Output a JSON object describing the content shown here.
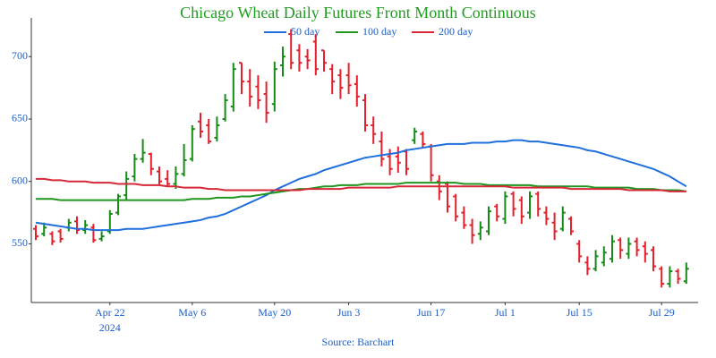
{
  "chart_data": {
    "type": "ohlc",
    "title": "Chicago Wheat Daily Futures Front Month Continuous",
    "source": "Source: Barchart",
    "year_label": "2024",
    "categories": [
      null,
      null,
      null,
      null,
      null,
      null,
      null,
      null,
      null,
      "Apr 22",
      null,
      null,
      null,
      null,
      null,
      null,
      null,
      null,
      null,
      "May 6",
      null,
      null,
      null,
      null,
      null,
      null,
      null,
      null,
      null,
      "May 20",
      null,
      null,
      null,
      null,
      null,
      null,
      null,
      null,
      "Jun 3",
      null,
      null,
      null,
      null,
      null,
      null,
      null,
      null,
      null,
      "Jun 17",
      null,
      null,
      null,
      null,
      null,
      null,
      null,
      null,
      "Jul 1",
      null,
      null,
      null,
      null,
      null,
      null,
      null,
      null,
      "Jul 15",
      null,
      null,
      null,
      null,
      null,
      null,
      null,
      null,
      null,
      "Jul 29",
      null,
      null,
      null
    ],
    "ohlc": {
      "open": [
        562,
        558,
        558,
        560,
        563,
        568,
        561,
        563,
        554,
        560,
        575,
        589,
        604,
        618,
        622,
        608,
        602,
        598,
        606,
        618,
        648,
        645,
        635,
        650,
        660,
        695,
        680,
        676,
        670,
        662,
        693,
        718,
        705,
        700,
        712,
        705,
        690,
        685,
        685,
        678,
        665,
        645,
        632,
        620,
        620,
        624,
        633,
        638,
        628,
        600,
        598,
        588,
        575,
        565,
        558,
        560,
        580,
        570,
        590,
        585,
        575,
        590,
        575,
        567,
        562,
        570,
        550,
        535,
        530,
        535,
        538,
        553,
        542,
        552,
        548,
        545,
        530,
        518,
        528,
        520
      ],
      "high": [
        565,
        567,
        560,
        562,
        570,
        572,
        569,
        566,
        560,
        577,
        590,
        608,
        622,
        634,
        623,
        612,
        609,
        612,
        630,
        645,
        655,
        650,
        652,
        670,
        695,
        695,
        690,
        685,
        680,
        696,
        708,
        722,
        710,
        706,
        718,
        705,
        694,
        690,
        695,
        685,
        670,
        652,
        640,
        626,
        628,
        626,
        643,
        640,
        630,
        605,
        600,
        590,
        580,
        570,
        568,
        580,
        582,
        592,
        592,
        588,
        592,
        592,
        580,
        575,
        580,
        572,
        553,
        540,
        545,
        548,
        557,
        555,
        555,
        555,
        552,
        548,
        532,
        532,
        530,
        535
      ],
      "low": [
        553,
        556,
        549,
        551,
        560,
        558,
        558,
        551,
        552,
        558,
        573,
        585,
        600,
        615,
        605,
        597,
        596,
        594,
        604,
        616,
        635,
        630,
        632,
        648,
        656,
        670,
        660,
        658,
        647,
        656,
        684,
        690,
        688,
        690,
        685,
        688,
        670,
        666,
        670,
        660,
        640,
        630,
        612,
        605,
        607,
        605,
        630,
        627,
        600,
        585,
        575,
        568,
        562,
        550,
        553,
        557,
        568,
        566,
        572,
        566,
        570,
        572,
        565,
        553,
        560,
        557,
        535,
        525,
        528,
        532,
        535,
        538,
        538,
        540,
        535,
        528,
        515,
        515,
        518,
        518
      ],
      "close": [
        556,
        563,
        552,
        554,
        567,
        561,
        565,
        553,
        556,
        574,
        588,
        602,
        618,
        623,
        610,
        600,
        598,
        606,
        617,
        642,
        640,
        632,
        645,
        665,
        690,
        680,
        668,
        665,
        655,
        690,
        700,
        695,
        695,
        697,
        690,
        695,
        680,
        675,
        677,
        668,
        645,
        638,
        618,
        610,
        615,
        610,
        640,
        630,
        605,
        592,
        580,
        572,
        565,
        557,
        563,
        576,
        572,
        588,
        578,
        572,
        588,
        578,
        570,
        560,
        575,
        560,
        540,
        530,
        540,
        543,
        552,
        545,
        550,
        545,
        542,
        532,
        518,
        528,
        522,
        530
      ]
    },
    "up_color": "#178a17",
    "down_color": "#e3202b",
    "series": [
      {
        "name": "50 day",
        "color": "#1f6fdc",
        "values": [
          567,
          566,
          565,
          564,
          563,
          562,
          562,
          561,
          561,
          561,
          561,
          562,
          562,
          562,
          563,
          564,
          565,
          566,
          567,
          568,
          569,
          571,
          572,
          574,
          577,
          580,
          583,
          586,
          589,
          593,
          596,
          599,
          602,
          604,
          606,
          609,
          611,
          613,
          615,
          617,
          619,
          620,
          621,
          622,
          623,
          625,
          626,
          627,
          628,
          629,
          630,
          630,
          630,
          631,
          631,
          631,
          632,
          632,
          633,
          633,
          632,
          632,
          631,
          630,
          629,
          628,
          627,
          625,
          624,
          622,
          620,
          618,
          616,
          614,
          612,
          610,
          607,
          604,
          600,
          596
        ]
      },
      {
        "name": "100 day",
        "color": "#1f961f",
        "values": [
          586,
          586,
          586,
          585,
          585,
          585,
          585,
          585,
          585,
          585,
          585,
          585,
          585,
          585,
          585,
          585,
          585,
          585,
          585,
          586,
          586,
          586,
          587,
          587,
          587,
          588,
          588,
          589,
          590,
          591,
          592,
          593,
          594,
          594,
          595,
          596,
          596,
          597,
          597,
          597,
          598,
          598,
          598,
          598,
          598,
          599,
          599,
          599,
          599,
          599,
          599,
          599,
          598,
          598,
          598,
          597,
          597,
          597,
          597,
          597,
          597,
          596,
          596,
          596,
          596,
          596,
          596,
          596,
          595,
          595,
          595,
          595,
          595,
          594,
          594,
          594,
          593,
          593,
          593,
          592
        ]
      },
      {
        "name": "200 day",
        "color": "#d62839",
        "values": [
          602,
          602,
          601,
          601,
          600,
          600,
          600,
          599,
          599,
          599,
          598,
          598,
          598,
          597,
          597,
          597,
          596,
          596,
          595,
          595,
          595,
          594,
          594,
          593,
          593,
          593,
          593,
          593,
          593,
          593,
          593,
          593,
          593,
          594,
          594,
          594,
          594,
          594,
          595,
          595,
          595,
          595,
          595,
          595,
          596,
          596,
          596,
          596,
          596,
          596,
          596,
          596,
          596,
          596,
          596,
          596,
          596,
          596,
          595,
          595,
          595,
          595,
          595,
          595,
          595,
          594,
          594,
          594,
          594,
          594,
          594,
          594,
          593,
          593,
          593,
          593,
          593,
          592,
          592,
          592
        ]
      }
    ],
    "ylim": [
      503,
      731
    ],
    "yticks": [
      550,
      600,
      650,
      700
    ],
    "grid": false,
    "legend": "top"
  }
}
